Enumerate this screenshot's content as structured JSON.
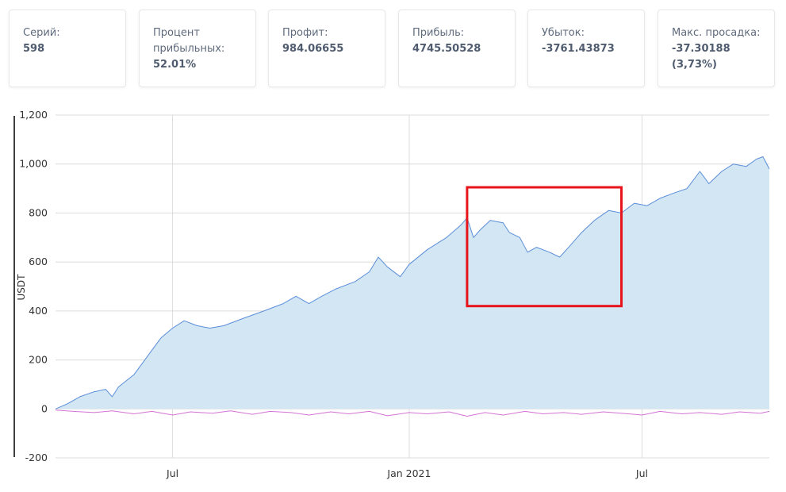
{
  "stats": [
    {
      "label": "Серий:",
      "value": "598"
    },
    {
      "label": "Процент прибыльных:",
      "value": "52.01%"
    },
    {
      "label": "Профит:",
      "value": "984.06655"
    },
    {
      "label": "Прибыль:",
      "value": "4745.50528"
    },
    {
      "label": "Убыток:",
      "value": "-3761.43873"
    },
    {
      "label": "Макс. просадка:",
      "value": "-37.30188 (3,73%)"
    }
  ],
  "chart_data": {
    "type": "area",
    "ylabel": "USDT",
    "ylim": [
      -200,
      1200
    ],
    "yticks": [
      -200,
      0,
      200,
      400,
      600,
      800,
      1000,
      1200
    ],
    "ytick_labels": [
      "-200",
      "0",
      "200",
      "400",
      "600",
      "800",
      "1,000",
      "1,200"
    ],
    "xlim": [
      "2020-04-01",
      "2021-10-08"
    ],
    "xticks": [
      {
        "date": "2020-07-01",
        "label": "Jul"
      },
      {
        "date": "2021-01-01",
        "label": "Jan 2021"
      },
      {
        "date": "2021-07-01",
        "label": "Jul"
      }
    ],
    "grid": true,
    "series": [
      {
        "color": "#5b8ed9",
        "fill": "#d2e6f4",
        "points": [
          [
            "2020-04-01",
            0
          ],
          [
            "2020-04-10",
            20
          ],
          [
            "2020-04-20",
            50
          ],
          [
            "2020-05-01",
            70
          ],
          [
            "2020-05-10",
            80
          ],
          [
            "2020-05-15",
            50
          ],
          [
            "2020-05-20",
            90
          ],
          [
            "2020-06-01",
            140
          ],
          [
            "2020-06-08",
            190
          ],
          [
            "2020-06-15",
            240
          ],
          [
            "2020-06-22",
            290
          ],
          [
            "2020-07-01",
            330
          ],
          [
            "2020-07-10",
            360
          ],
          [
            "2020-07-20",
            340
          ],
          [
            "2020-07-30",
            330
          ],
          [
            "2020-08-10",
            340
          ],
          [
            "2020-08-25",
            370
          ],
          [
            "2020-09-10",
            400
          ],
          [
            "2020-09-25",
            430
          ],
          [
            "2020-10-05",
            460
          ],
          [
            "2020-10-15",
            430
          ],
          [
            "2020-10-25",
            460
          ],
          [
            "2020-11-05",
            490
          ],
          [
            "2020-11-20",
            520
          ],
          [
            "2020-12-01",
            560
          ],
          [
            "2020-12-08",
            620
          ],
          [
            "2020-12-15",
            580
          ],
          [
            "2020-12-25",
            540
          ],
          [
            "2021-01-01",
            590
          ],
          [
            "2021-01-15",
            650
          ],
          [
            "2021-01-30",
            700
          ],
          [
            "2021-02-10",
            750
          ],
          [
            "2021-02-15",
            780
          ],
          [
            "2021-02-20",
            700
          ],
          [
            "2021-02-25",
            730
          ],
          [
            "2021-03-05",
            770
          ],
          [
            "2021-03-15",
            760
          ],
          [
            "2021-03-20",
            720
          ],
          [
            "2021-03-28",
            700
          ],
          [
            "2021-04-03",
            640
          ],
          [
            "2021-04-10",
            660
          ],
          [
            "2021-04-20",
            640
          ],
          [
            "2021-04-28",
            620
          ],
          [
            "2021-05-05",
            660
          ],
          [
            "2021-05-15",
            720
          ],
          [
            "2021-05-25",
            770
          ],
          [
            "2021-06-05",
            810
          ],
          [
            "2021-06-15",
            800
          ],
          [
            "2021-06-25",
            840
          ],
          [
            "2021-07-05",
            830
          ],
          [
            "2021-07-15",
            860
          ],
          [
            "2021-07-25",
            880
          ],
          [
            "2021-08-05",
            900
          ],
          [
            "2021-08-15",
            970
          ],
          [
            "2021-08-22",
            920
          ],
          [
            "2021-09-01",
            970
          ],
          [
            "2021-09-10",
            1000
          ],
          [
            "2021-09-20",
            990
          ],
          [
            "2021-09-28",
            1020
          ],
          [
            "2021-10-03",
            1030
          ],
          [
            "2021-10-08",
            980
          ]
        ]
      },
      {
        "color": "#d374d4",
        "points": [
          [
            "2020-04-01",
            -5
          ],
          [
            "2020-04-15",
            -10
          ],
          [
            "2020-05-01",
            -15
          ],
          [
            "2020-05-15",
            -8
          ],
          [
            "2020-06-01",
            -20
          ],
          [
            "2020-06-15",
            -10
          ],
          [
            "2020-07-01",
            -25
          ],
          [
            "2020-07-15",
            -12
          ],
          [
            "2020-08-01",
            -18
          ],
          [
            "2020-08-15",
            -8
          ],
          [
            "2020-09-01",
            -22
          ],
          [
            "2020-09-15",
            -10
          ],
          [
            "2020-10-01",
            -15
          ],
          [
            "2020-10-15",
            -25
          ],
          [
            "2020-11-01",
            -12
          ],
          [
            "2020-11-15",
            -20
          ],
          [
            "2020-12-01",
            -10
          ],
          [
            "2020-12-15",
            -28
          ],
          [
            "2021-01-01",
            -15
          ],
          [
            "2021-01-15",
            -20
          ],
          [
            "2021-02-01",
            -12
          ],
          [
            "2021-02-15",
            -30
          ],
          [
            "2021-03-01",
            -15
          ],
          [
            "2021-03-15",
            -25
          ],
          [
            "2021-04-01",
            -10
          ],
          [
            "2021-04-15",
            -20
          ],
          [
            "2021-05-01",
            -15
          ],
          [
            "2021-05-15",
            -22
          ],
          [
            "2021-06-01",
            -12
          ],
          [
            "2021-06-15",
            -18
          ],
          [
            "2021-07-01",
            -25
          ],
          [
            "2021-07-15",
            -10
          ],
          [
            "2021-08-01",
            -20
          ],
          [
            "2021-08-15",
            -15
          ],
          [
            "2021-09-01",
            -22
          ],
          [
            "2021-09-15",
            -12
          ],
          [
            "2021-10-01",
            -18
          ],
          [
            "2021-10-08",
            -10
          ]
        ]
      }
    ],
    "highlight": {
      "x_from": "2021-02-15",
      "x_to": "2021-06-15",
      "y_from": 420,
      "y_to": 905,
      "color": "#e8141c"
    }
  }
}
